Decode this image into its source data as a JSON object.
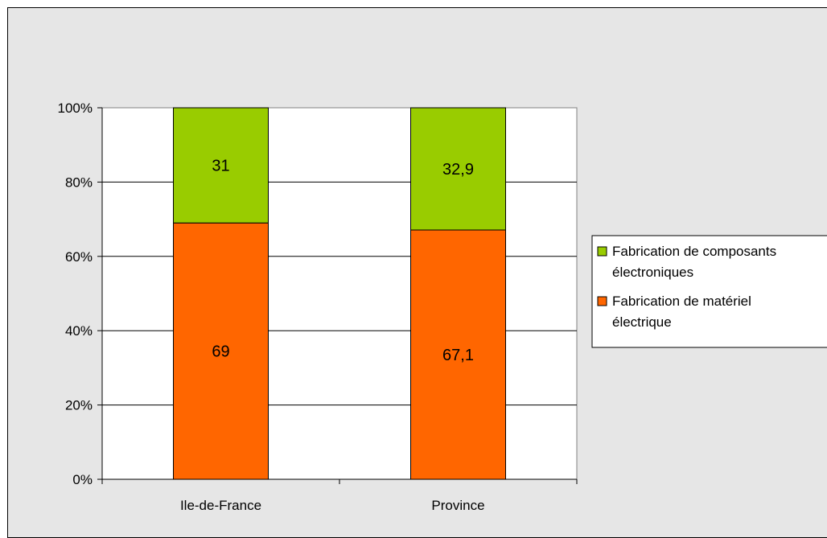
{
  "chart_data": {
    "type": "bar",
    "stacked": true,
    "percent_stacked": true,
    "categories": [
      "Ile-de-France",
      "Province"
    ],
    "series": [
      {
        "name": "Fabrication de matériel électrique",
        "values": [
          69,
          67.1
        ],
        "labels": [
          "69",
          "67,1"
        ],
        "color": "#ff6600"
      },
      {
        "name": "Fabrication de composants électroniques",
        "values": [
          31,
          32.9
        ],
        "labels": [
          "31",
          "32,9"
        ],
        "color": "#99cc00"
      }
    ],
    "y_ticks": [
      "0%",
      "20%",
      "40%",
      "60%",
      "80%",
      "100%"
    ],
    "ylim": [
      0,
      100
    ],
    "grid": true,
    "legend": {
      "placement": "right",
      "entries": [
        {
          "lines": [
            "Fabrication de composants",
            "électroniques"
          ],
          "color": "#99cc00"
        },
        {
          "lines": [
            "Fabrication de matériel",
            "électrique"
          ],
          "color": "#ff6600"
        }
      ]
    },
    "plot_background": "#ffffff",
    "chart_background": "#e6e6e6"
  }
}
